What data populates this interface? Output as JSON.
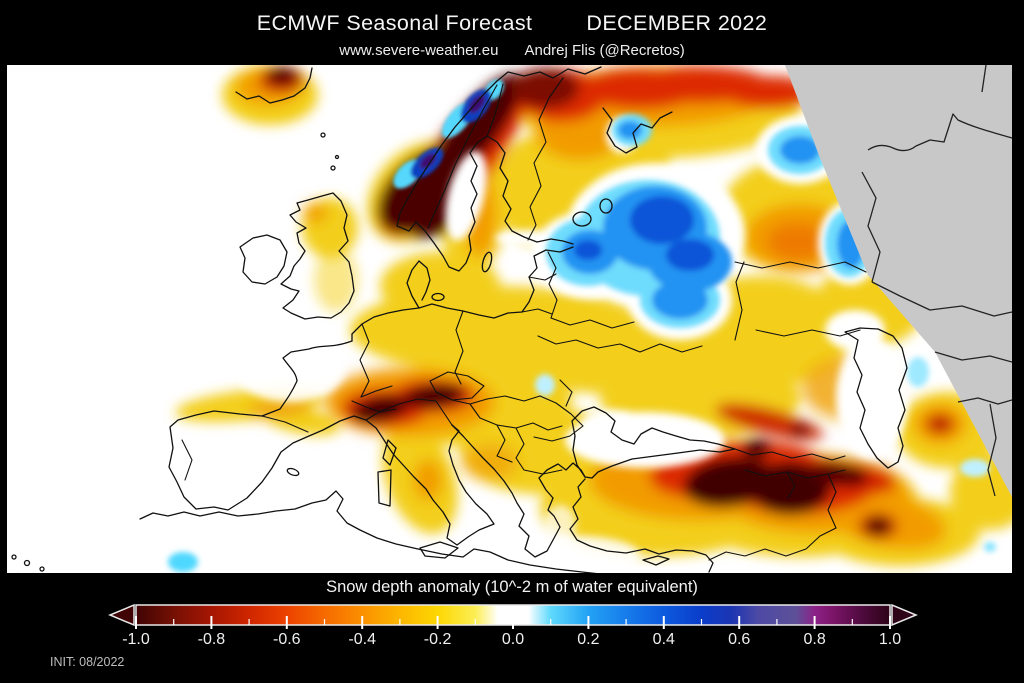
{
  "header": {
    "title": "ECMWF Seasonal Forecast",
    "period": "DECEMBER 2022",
    "website": "www.severe-weather.eu",
    "author": "Andrej Flis (@Recretos)"
  },
  "footer": {
    "colorbar_title": "Snow depth anomaly (10^-2 m of water equivalent)",
    "init_label": "INIT: 08/2022",
    "tick_labels": [
      "-1.0",
      "-0.8",
      "-0.6",
      "-0.4",
      "-0.2",
      "0.0",
      "0.2",
      "0.4",
      "0.6",
      "0.8",
      "1.0"
    ],
    "colorbar_stops": [
      {
        "v": -1.0,
        "c": "#400404"
      },
      {
        "v": -0.9,
        "c": "#751004"
      },
      {
        "v": -0.8,
        "c": "#a51603"
      },
      {
        "v": -0.7,
        "c": "#cf2600"
      },
      {
        "v": -0.6,
        "c": "#ec4200"
      },
      {
        "v": -0.5,
        "c": "#f66a00"
      },
      {
        "v": -0.4,
        "c": "#fb9000"
      },
      {
        "v": -0.3,
        "c": "#fdb600"
      },
      {
        "v": -0.2,
        "c": "#fdd703"
      },
      {
        "v": -0.1,
        "c": "#fcee54"
      },
      {
        "v": -0.04,
        "c": "#ffffff"
      },
      {
        "v": 0.04,
        "c": "#ffffff"
      },
      {
        "v": 0.1,
        "c": "#5fd9fd"
      },
      {
        "v": 0.2,
        "c": "#22a2f4"
      },
      {
        "v": 0.3,
        "c": "#177ceb"
      },
      {
        "v": 0.4,
        "c": "#0d5ade"
      },
      {
        "v": 0.5,
        "c": "#0a3dca"
      },
      {
        "v": 0.58,
        "c": "#1c35b2"
      },
      {
        "v": 0.65,
        "c": "#4d4aa5"
      },
      {
        "v": 0.75,
        "c": "#5d5098"
      },
      {
        "v": 0.8,
        "c": "#8c2288"
      },
      {
        "v": 0.85,
        "c": "#7c1468"
      },
      {
        "v": 0.93,
        "c": "#4c0a3c"
      },
      {
        "v": 1.0,
        "c": "#2e0418"
      }
    ]
  },
  "map": {
    "background_color": "#ffffff",
    "no_data_color": "#c8c8c8",
    "coastline_color": "#111111"
  },
  "chart_data": {
    "type": "heatmap",
    "title": "ECMWF Seasonal Forecast — DECEMBER 2022",
    "variable": "Snow depth anomaly",
    "units": "10^-2 m of water equivalent",
    "init": "08/2022",
    "scale_range": [
      -1.0,
      1.0
    ],
    "tick_step": 0.2,
    "legend_position": "bottom",
    "regions": [
      {
        "name": "Iceland",
        "anomaly": "-0.6 to -1.0 core, -0.2 fringe"
      },
      {
        "name": "Scandinavian Mountains (Norway/Sweden)",
        "anomaly": "below -1.0 band with embedded +0.6 to +1.0 cores"
      },
      {
        "name": "Kola Peninsula / far northern Russia",
        "anomaly": "-0.6 to -1.0"
      },
      {
        "name": "Northwest Russia (Karelia to upper Volga)",
        "anomaly": "+0.2 to +0.4"
      },
      {
        "name": "Baltic states / Gulf of Finland area",
        "anomaly": "+0.1 to +0.3"
      },
      {
        "name": "Scotland",
        "anomaly": "-0.2 to -0.4 spot"
      },
      {
        "name": "England",
        "anomaly": "about -0.1"
      },
      {
        "name": "Central and Eastern Europe (Germany to Ukraine/Balkans)",
        "anomaly": "-0.1 to -0.3"
      },
      {
        "name": "Moscow region",
        "anomaly": "-0.3 to -0.5"
      },
      {
        "name": "Alps",
        "anomaly": "below -1.0"
      },
      {
        "name": "Northern Spain / Pyrenees band",
        "anomaly": "about -0.2"
      },
      {
        "name": "Apennines (Italy)",
        "anomaly": "-0.2 to -0.4"
      },
      {
        "name": "Eastern Turkey / Caucasus / Armenian Highlands",
        "anomaly": "below -1.0 cores, -0.4 to -0.8 surroundings"
      },
      {
        "name": "Zagros / NW Iran",
        "anomaly": "-0.6 to -1.0 spots"
      },
      {
        "name": "Atlas (Morocco)",
        "anomaly": "+0.1 to +0.2 spot"
      },
      {
        "name": "Seas and snow-free lowlands",
        "anomaly": "0.0 (white)"
      },
      {
        "name": "Top-right corner",
        "anomaly": "no data (outside forecast domain)"
      }
    ]
  }
}
